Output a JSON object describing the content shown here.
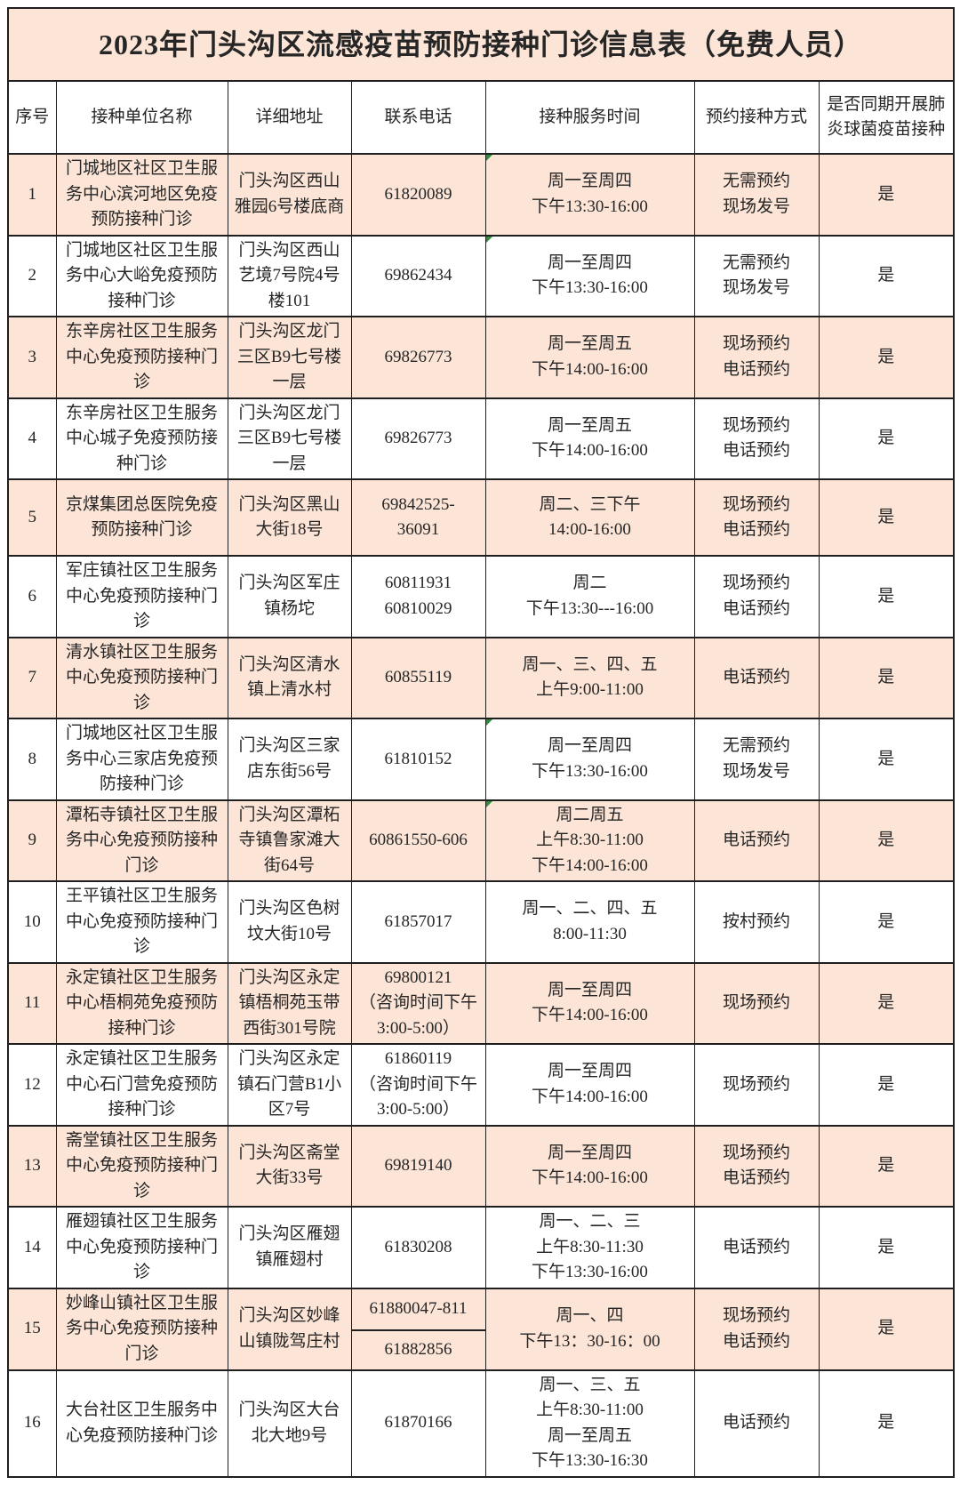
{
  "title": "2023年门头沟区流感疫苗预防接种门诊信息表（免费人员）",
  "colors": {
    "row_highlight": "#fce4d6",
    "border": "#1f1f1f",
    "error_marker_green": "#2e8b3a"
  },
  "headers": [
    "序号",
    "接种单位名称",
    "详细地址",
    "联系电话",
    "接种服务时间",
    "预约接种方式",
    "是否同期开展肺炎球菌疫苗接种"
  ],
  "rows": [
    {
      "num": "1",
      "name": "门城地区社区卫生服务中心滨河地区免疫预防接种门诊",
      "address": "门头沟区西山雅园6号楼底商",
      "phones": [
        "61820089"
      ],
      "phone_split": false,
      "time": [
        "周一至周四",
        "下午13:30-16:00"
      ],
      "time_marker": true,
      "booking": [
        "无需预约",
        "现场发号"
      ],
      "pneumococcal": "是",
      "highlight": true
    },
    {
      "num": "2",
      "name": "门城地区社区卫生服务中心大峪免疫预防接种门诊",
      "address": "门头沟区西山艺境7号院4号楼101",
      "phones": [
        "69862434"
      ],
      "phone_split": false,
      "time": [
        "周一至周四",
        "下午13:30-16:00"
      ],
      "time_marker": true,
      "booking": [
        "无需预约",
        "现场发号"
      ],
      "pneumococcal": "是",
      "highlight": false
    },
    {
      "num": "3",
      "name": "东辛房社区卫生服务中心免疫预防接种门诊",
      "address": "门头沟区龙门三区B9七号楼一层",
      "phones": [
        "69826773"
      ],
      "phone_split": false,
      "time": [
        "周一至周五",
        "下午14:00-16:00"
      ],
      "time_marker": false,
      "booking": [
        "现场预约",
        "电话预约"
      ],
      "pneumococcal": "是",
      "highlight": true
    },
    {
      "num": "4",
      "name": "东辛房社区卫生服务中心城子免疫预防接种门诊",
      "address": "门头沟区龙门三区B9七号楼一层",
      "phones": [
        "69826773"
      ],
      "phone_split": false,
      "time": [
        "周一至周五",
        "下午14:00-16:00"
      ],
      "time_marker": false,
      "booking": [
        "现场预约",
        "电话预约"
      ],
      "pneumococcal": "是",
      "highlight": false
    },
    {
      "num": "5",
      "name": "京煤集团总医院免疫预防接种门诊",
      "address": "门头沟区黑山大街18号",
      "phones": [
        "69842525-",
        "36091"
      ],
      "phone_split": false,
      "time": [
        "周二、三下午",
        "14:00-16:00"
      ],
      "time_marker": false,
      "booking": [
        "现场预约",
        "电话预约"
      ],
      "pneumococcal": "是",
      "highlight": true
    },
    {
      "num": "6",
      "name": "军庄镇社区卫生服务中心免疫预防接种门诊",
      "address": "门头沟区军庄镇杨坨",
      "phones": [
        "60811931",
        "60810029"
      ],
      "phone_split": false,
      "time": [
        "周二",
        "下午13:30---16:00"
      ],
      "time_marker": false,
      "booking": [
        "现场预约",
        "电话预约"
      ],
      "pneumococcal": "是",
      "highlight": false
    },
    {
      "num": "7",
      "name": "清水镇社区卫生服务中心免疫预防接种门诊",
      "address": "门头沟区清水镇上清水村",
      "phones": [
        "60855119"
      ],
      "phone_split": false,
      "time": [
        "周一、三、四、五",
        "上午9:00-11:00"
      ],
      "time_marker": false,
      "booking": [
        "电话预约"
      ],
      "pneumococcal": "是",
      "highlight": true
    },
    {
      "num": "8",
      "name": "门城地区社区卫生服务中心三家店免疫预防接种门诊",
      "address": "门头沟区三家店东街56号",
      "phones": [
        "61810152"
      ],
      "phone_split": false,
      "time": [
        "周一至周四",
        "下午13:30-16:00"
      ],
      "time_marker": true,
      "booking": [
        "无需预约",
        "现场发号"
      ],
      "pneumococcal": "是",
      "highlight": false
    },
    {
      "num": "9",
      "name": "潭柘寺镇社区卫生服务中心免疫预防接种门诊",
      "address": "门头沟区潭柘寺镇鲁家滩大街64号",
      "phones": [
        "60861550-606"
      ],
      "phone_split": false,
      "time": [
        "周二周五",
        "上午8:30-11:00",
        "下午14:00-16:00"
      ],
      "time_marker": true,
      "booking": [
        "电话预约"
      ],
      "pneumococcal": "是",
      "highlight": true
    },
    {
      "num": "10",
      "name": "王平镇社区卫生服务中心免疫预防接种门诊",
      "address": "门头沟区色树坟大街10号",
      "phones": [
        "61857017"
      ],
      "phone_split": false,
      "time": [
        "周一、二、四、五",
        "8:00-11:30"
      ],
      "time_marker": false,
      "booking": [
        "按村预约"
      ],
      "pneumococcal": "是",
      "highlight": false
    },
    {
      "num": "11",
      "name": "永定镇社区卫生服务中心梧桐苑免疫预防接种门诊",
      "address": "门头沟区永定镇梧桐苑玉带西街301号院",
      "phones": [
        "69800121",
        "（咨询时间下午",
        "3:00-5:00）"
      ],
      "phone_split": false,
      "time": [
        "周一至周四",
        "下午14:00-16:00"
      ],
      "time_marker": false,
      "booking": [
        "现场预约"
      ],
      "pneumococcal": "是",
      "highlight": true
    },
    {
      "num": "12",
      "name": "永定镇社区卫生服务中心石门营免疫预防接种门诊",
      "address": "门头沟区永定镇石门营B1小区7号",
      "phones": [
        "61860119",
        "（咨询时间下午",
        "3:00-5:00）"
      ],
      "phone_split": false,
      "time": [
        "周一至周四",
        "下午14:00-16:00"
      ],
      "time_marker": false,
      "booking": [
        "现场预约"
      ],
      "pneumococcal": "是",
      "highlight": false
    },
    {
      "num": "13",
      "name": "斋堂镇社区卫生服务中心免疫预防接种门诊",
      "address": "门头沟区斋堂大街33号",
      "phones": [
        "69819140"
      ],
      "phone_split": false,
      "time": [
        "周一至周四",
        "下午14:00-16:00"
      ],
      "time_marker": false,
      "booking": [
        "现场预约",
        "电话预约"
      ],
      "pneumococcal": "是",
      "highlight": true
    },
    {
      "num": "14",
      "name": "雁翅镇社区卫生服务中心免疫预防接种门诊",
      "address": "门头沟区雁翅镇雁翅村",
      "phones": [
        "61830208"
      ],
      "phone_split": false,
      "time": [
        "周一、二、三",
        "上午8:30-11:30",
        "下午13:30-16:00"
      ],
      "time_marker": false,
      "booking": [
        "电话预约"
      ],
      "pneumococcal": "是",
      "highlight": false
    },
    {
      "num": "15",
      "name": "妙峰山镇社区卫生服务中心免疫预防接种门诊",
      "address": "门头沟区妙峰山镇陇驾庄村",
      "phones": [
        "61880047-811",
        "61882856"
      ],
      "phone_split": true,
      "time": [
        "周一、四",
        "下午13：30-16：00"
      ],
      "time_marker": false,
      "booking": [
        "现场预约",
        "电话预约"
      ],
      "pneumococcal": "是",
      "highlight": true
    },
    {
      "num": "16",
      "name": "大台社区卫生服务中心免疫预防接种门诊",
      "address": "门头沟区大台北大地9号",
      "phones": [
        "61870166"
      ],
      "phone_split": false,
      "time": [
        "周一、三、五",
        "上午8:30-11:00",
        "周一至周五",
        "下午13:30-16:30"
      ],
      "time_marker": false,
      "booking": [
        "电话预约"
      ],
      "pneumococcal": "是",
      "highlight": false
    }
  ]
}
